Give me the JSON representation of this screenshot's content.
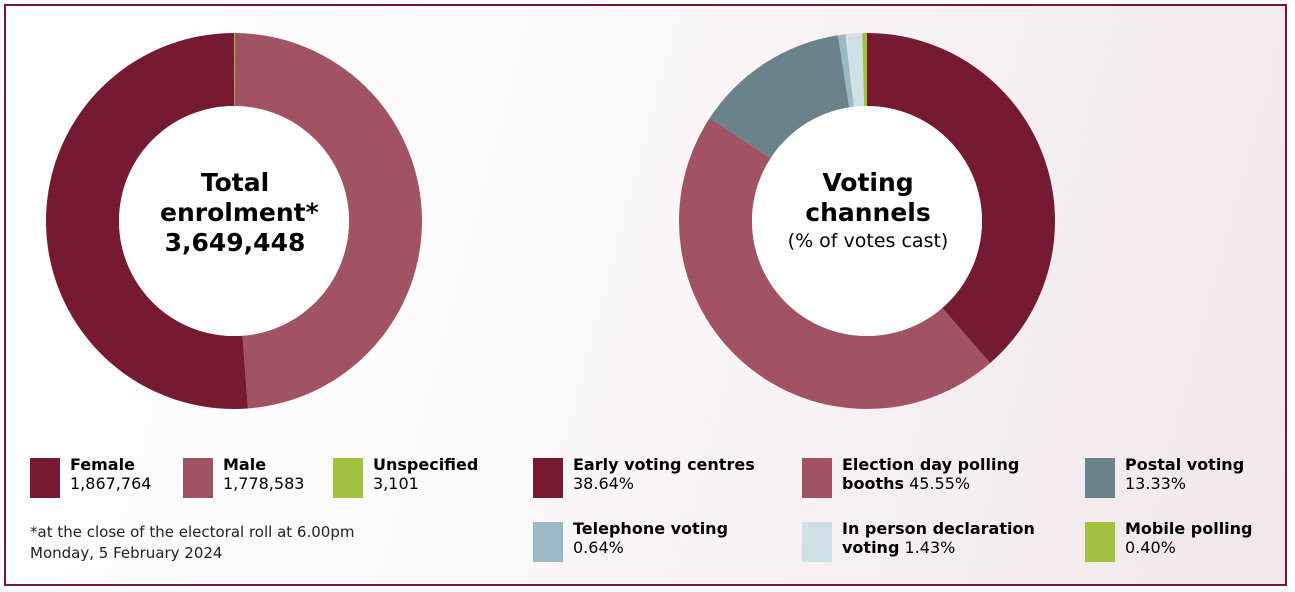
{
  "chart_data": [
    {
      "type": "pie",
      "center_title": "Total enrolment*",
      "center_value": "3,649,448",
      "slices": [
        {
          "label": "Unspecified",
          "display_value": "3,101",
          "value": 3101,
          "color": "#a2c13f"
        },
        {
          "label": "Male",
          "display_value": "1,778,583",
          "value": 1778583,
          "color": "#a15363"
        },
        {
          "label": "Female",
          "display_value": "1,867,764",
          "value": 1867764,
          "color": "#761a31"
        }
      ],
      "legend_order": [
        "Female",
        "Male",
        "Unspecified"
      ],
      "footnote_line1": "*at the close of the electoral roll at 6.00pm",
      "footnote_line2": "Monday, 5 February 2024"
    },
    {
      "type": "pie",
      "center_title": "Voting channels",
      "center_subtitle": "(% of votes cast)",
      "slices": [
        {
          "label": "Early voting centres",
          "display_value": "38.64%",
          "value": 38.64,
          "color": "#761a31"
        },
        {
          "label": "Election day polling booths",
          "display_value": "45.55%",
          "value": 45.55,
          "color": "#a15363"
        },
        {
          "label": "Postal voting",
          "display_value": "13.33%",
          "value": 13.33,
          "color": "#6c828a"
        },
        {
          "label": "Telephone voting",
          "display_value": "0.64%",
          "value": 0.64,
          "color": "#9ab9c3"
        },
        {
          "label": "In person declaration voting",
          "display_value": "1.43%",
          "value": 1.43,
          "color": "#cfe0e6"
        },
        {
          "label": "Mobile polling",
          "display_value": "0.40%",
          "value": 0.4,
          "color": "#a2c13f"
        }
      ],
      "legend": [
        {
          "line1_bold": "Early voting centres",
          "line2_bold": "",
          "line2_normal": "38.64%"
        },
        {
          "line1_bold": "Election day polling",
          "line2_bold": "booths",
          "line2_normal": " 45.55%"
        },
        {
          "line1_bold": "Postal voting",
          "line2_bold": "",
          "line2_normal": "13.33%"
        },
        {
          "line1_bold": "Telephone voting",
          "line2_bold": "",
          "line2_normal": "0.64%"
        },
        {
          "line1_bold": "In person declaration",
          "line2_bold": "voting",
          "line2_normal": " 1.43%"
        },
        {
          "line1_bold": "Mobile polling",
          "line2_bold": "",
          "line2_normal": "0.40%"
        }
      ]
    }
  ]
}
